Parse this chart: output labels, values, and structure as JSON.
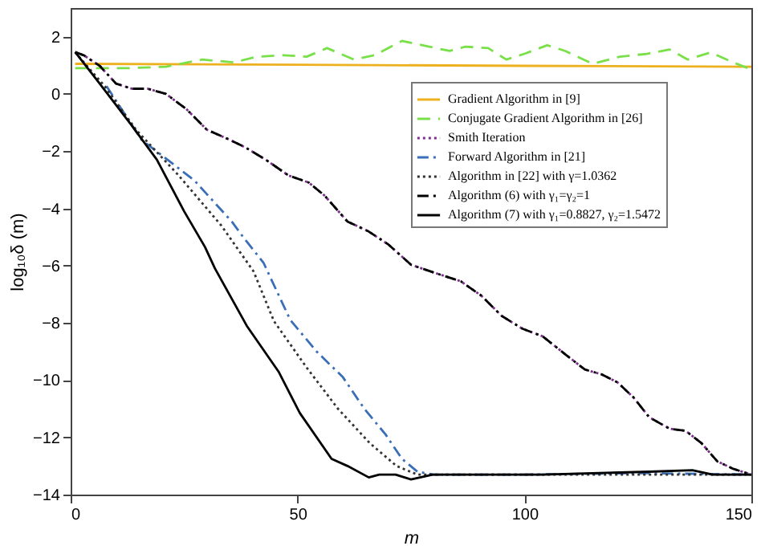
{
  "chart_data": {
    "type": "line",
    "xlabel": "m",
    "ylabel": "log₁₀δ (m)",
    "xlim": [
      0,
      150
    ],
    "xticks": [
      0,
      50,
      100,
      150
    ],
    "ylim": [
      -14,
      3
    ],
    "yticks": [
      -14,
      -12,
      -10,
      -8,
      -6,
      -4,
      -2,
      0,
      2
    ],
    "grid": false,
    "legend": "top right",
    "marker": "none",
    "series": [
      {
        "name": "Gradient Algorithm in [9]",
        "color": "#edb120",
        "line_style": "solid",
        "x": [
          1,
          50,
          100,
          150
        ],
        "values": [
          1.05,
          1.02,
          0.98,
          0.95
        ]
      },
      {
        "name": "Conjugate Gradient Algorithm in [26]",
        "color": "#7ae04a",
        "line_style": "dashed",
        "x": [
          1,
          13,
          21,
          29,
          36,
          41,
          47,
          52,
          56.5,
          62.4,
          67,
          73,
          79,
          83.5,
          87,
          92,
          96,
          100,
          105,
          109,
          115,
          121,
          127,
          132,
          136,
          141,
          146,
          150
        ],
        "values": [
          0.9,
          0.9,
          0.95,
          1.2,
          1.1,
          1.3,
          1.35,
          1.3,
          1.6,
          1.2,
          1.35,
          1.85,
          1.65,
          1.5,
          1.65,
          1.6,
          1.2,
          1.4,
          1.7,
          1.5,
          1.05,
          1.3,
          1.4,
          1.55,
          1.2,
          1.45,
          1.1,
          0.85
        ]
      },
      {
        "name": "Smith Iteration",
        "color": "#7e2f8e",
        "line_style": "dotted",
        "x": [
          1,
          3,
          6.4,
          10,
          13.5,
          17,
          21,
          25.5,
          30,
          35,
          38.5,
          43,
          48,
          52.5,
          56,
          61,
          65.6,
          70,
          75,
          80,
          86,
          90.5,
          95,
          99.5,
          104,
          109,
          113.3,
          117,
          120.5,
          124,
          127.5,
          132,
          135.5,
          139,
          142.5,
          146,
          150
        ],
        "values": [
          1.46,
          1.34,
          0.98,
          0.36,
          0.18,
          0.18,
          0,
          -0.53,
          -1.25,
          -1.6,
          -1.87,
          -2.3,
          -2.85,
          -3.1,
          -3.56,
          -4.46,
          -4.8,
          -5.26,
          -5.97,
          -6.24,
          -6.55,
          -7.05,
          -7.76,
          -8.2,
          -8.47,
          -9.1,
          -9.63,
          -9.8,
          -10.08,
          -10.6,
          -11.3,
          -11.7,
          -11.77,
          -12.2,
          -12.84,
          -13.1,
          -13.3
        ]
      },
      {
        "name": "Forward Algorithm in [21]",
        "color": "#3a6fb8",
        "line_style": "dashdot",
        "x": [
          7.9,
          15.6,
          27.3,
          35.5,
          38,
          42.5,
          48.4,
          54.2,
          60,
          64.7,
          69.4,
          73,
          76.4,
          80,
          100,
          125,
          150
        ],
        "values": [
          0.27,
          -1.6,
          -3.03,
          -4.46,
          -5.0,
          -5.9,
          -7.9,
          -9.0,
          -9.9,
          -11.0,
          -11.9,
          -12.75,
          -13.2,
          -13.3,
          -13.3,
          -13.25,
          -13.3
        ]
      },
      {
        "name": "Algorithm in [22] with γ=1.0362",
        "color": "#333333",
        "line_style": "dotted",
        "x": [
          1,
          7.5,
          14.4,
          23.8,
          33.2,
          40.3,
          44.8,
          51.9,
          58.9,
          65.9,
          71.8,
          76.4,
          100,
          125,
          150
        ],
        "values": [
          1.45,
          0.27,
          -1.25,
          -2.85,
          -4.6,
          -6.2,
          -7.94,
          -9.54,
          -11.0,
          -12.2,
          -13.0,
          -13.3,
          -13.3,
          -13.3,
          -13.3
        ]
      },
      {
        "name": "Algorithm (6) with γ₁=γ₂=1",
        "color": "#000000",
        "line_style": "dashdot",
        "x": [
          1,
          3,
          6.4,
          10,
          13.5,
          17,
          21,
          25.5,
          30,
          35,
          38.5,
          43,
          48,
          52.5,
          56,
          61,
          65.6,
          70,
          75,
          80,
          86,
          90.5,
          95,
          99.5,
          104,
          109,
          113.3,
          117,
          120.5,
          124,
          127.5,
          132,
          135.5,
          139,
          142.5,
          146,
          150
        ],
        "values": [
          1.46,
          1.34,
          0.98,
          0.36,
          0.18,
          0.18,
          0,
          -0.53,
          -1.25,
          -1.6,
          -1.87,
          -2.3,
          -2.85,
          -3.1,
          -3.56,
          -4.46,
          -4.8,
          -5.26,
          -5.97,
          -6.24,
          -6.55,
          -7.05,
          -7.76,
          -8.2,
          -8.47,
          -9.1,
          -9.63,
          -9.8,
          -10.08,
          -10.6,
          -11.3,
          -11.7,
          -11.77,
          -12.2,
          -12.84,
          -13.1,
          -13.3
        ]
      },
      {
        "name": "Algorithm (7) with γ₁=0.8827, γ₂=1.5472",
        "color": "#000000",
        "line_style": "solid",
        "x": [
          1,
          6.4,
          13.3,
          19,
          25,
          29.6,
          31.8,
          38.8,
          45.8,
          50.5,
          57.5,
          61,
          65.7,
          68,
          71.6,
          75,
          79.8,
          104,
          127.5,
          137,
          141.5,
          150
        ],
        "values": [
          1.46,
          0.36,
          -1.07,
          -2.3,
          -4.1,
          -5.35,
          -6.1,
          -8.1,
          -9.7,
          -11.15,
          -12.75,
          -13.0,
          -13.4,
          -13.3,
          -13.3,
          -13.47,
          -13.3,
          -13.3,
          -13.2,
          -13.15,
          -13.3,
          -13.3
        ]
      }
    ]
  }
}
